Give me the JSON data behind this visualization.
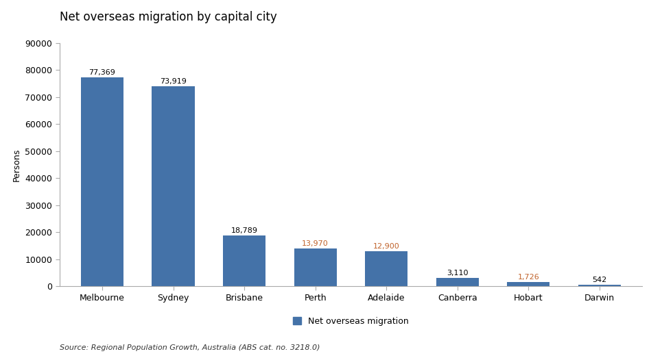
{
  "title": "Net overseas migration by capital city",
  "categories": [
    "Melbourne",
    "Sydney",
    "Brisbane",
    "Perth",
    "Adelaide",
    "Canberra",
    "Hobart",
    "Darwin"
  ],
  "values": [
    77369,
    73919,
    18789,
    13970,
    12900,
    3110,
    1726,
    542
  ],
  "labels": [
    "77,369",
    "73,919",
    "18,789",
    "13,970",
    "12,900",
    "3,110",
    "1,726",
    "542"
  ],
  "bar_color": "#4472a8",
  "label_colors": [
    "#000000",
    "#000000",
    "#000000",
    "#c0622a",
    "#c0622a",
    "#000000",
    "#c0622a",
    "#000000"
  ],
  "ylabel": "Persons",
  "ylim": [
    0,
    90000
  ],
  "yticks": [
    0,
    10000,
    20000,
    30000,
    40000,
    50000,
    60000,
    70000,
    80000,
    90000
  ],
  "ytick_labels": [
    "0",
    "10000",
    "20000",
    "30000",
    "40000",
    "50000",
    "60000",
    "70000",
    "80000",
    "90000"
  ],
  "legend_label": "Net overseas migration",
  "source_text": "Source: Regional Population Growth, Australia (ABS cat. no. 3218.0)",
  "title_fontsize": 12,
  "axis_label_fontsize": 9,
  "tick_fontsize": 9,
  "bar_label_fontsize": 8,
  "source_fontsize": 8,
  "legend_fontsize": 9
}
